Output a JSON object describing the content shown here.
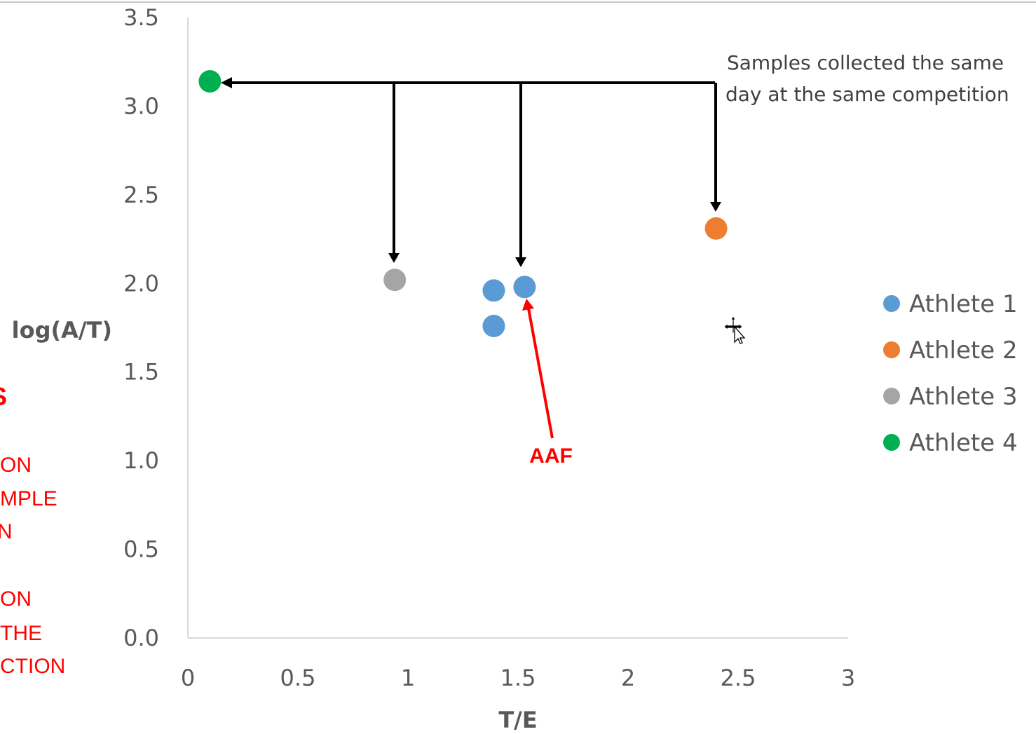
{
  "chart_data": {
    "type": "scatter",
    "xlabel": "T/E",
    "ylabel": "log(A/T)",
    "xlim": [
      0,
      3
    ],
    "ylim": [
      0,
      3.5
    ],
    "x_ticks": [
      "0",
      "0.5",
      "1",
      "1.5",
      "2",
      "2.5",
      "3"
    ],
    "y_ticks": [
      "0.0",
      "0.5",
      "1.0",
      "1.5",
      "2.0",
      "2.5",
      "3.0",
      "3.5"
    ],
    "grid": false,
    "legend_position": "right",
    "series": [
      {
        "name": "Athlete 1",
        "color": "#5b9bd5",
        "points": [
          {
            "x": 1.39,
            "y": 1.96
          },
          {
            "x": 1.39,
            "y": 1.76
          },
          {
            "x": 1.53,
            "y": 1.98
          }
        ]
      },
      {
        "name": "Athlete 2",
        "color": "#ed7d31",
        "points": [
          {
            "x": 2.4,
            "y": 2.31
          }
        ]
      },
      {
        "name": "Athlete 3",
        "color": "#a5a5a5",
        "points": [
          {
            "x": 0.94,
            "y": 2.02
          }
        ]
      },
      {
        "name": "Athlete 4",
        "color": "#00b050",
        "points": [
          {
            "x": 0.1,
            "y": 3.14
          }
        ]
      }
    ],
    "annotations": {
      "note_lines": [
        "Samples collected the same",
        "day at the same competition"
      ],
      "aaf_label": "AAF"
    }
  },
  "left_partial_text": {
    "heading": "S",
    "lines": [
      "ON",
      "MPLE",
      "N",
      "ON",
      "THE",
      "CTION"
    ]
  }
}
